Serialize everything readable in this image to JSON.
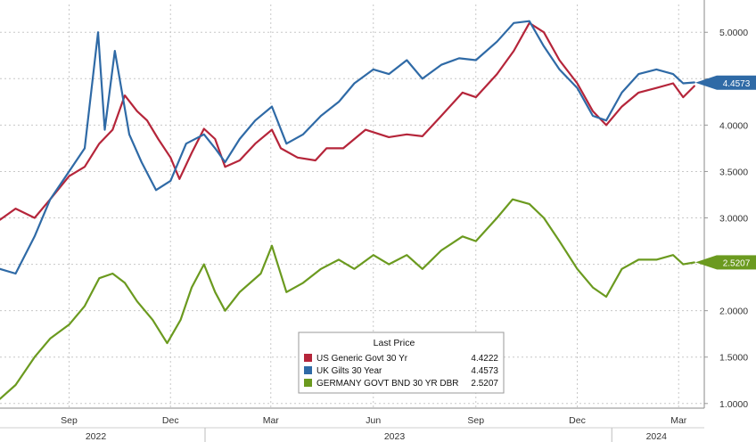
{
  "chart_data": {
    "type": "line",
    "title": "",
    "xlabel": "",
    "ylabel": "",
    "ylim": [
      0.95,
      5.3
    ],
    "yticks": [
      "1.0000",
      "1.5000",
      "2.0000",
      "2.5000",
      "3.0000",
      "3.5000",
      "4.0000",
      "4.5000",
      "5.0000"
    ],
    "xticks": [
      {
        "label": "Sep",
        "date": "2022-09-01"
      },
      {
        "label": "Dec",
        "date": "2022-12-01"
      },
      {
        "label": "Mar",
        "date": "2023-03-01"
      },
      {
        "label": "Jun",
        "date": "2023-06-01"
      },
      {
        "label": "Sep",
        "date": "2023-09-01"
      },
      {
        "label": "Dec",
        "date": "2023-12-01"
      },
      {
        "label": "Mar",
        "date": "2024-03-01"
      }
    ],
    "years": [
      {
        "label": "2022",
        "date": "2022-09-25"
      },
      {
        "label": "2023",
        "date": "2023-06-20"
      },
      {
        "label": "2024",
        "date": "2024-02-10"
      }
    ],
    "year_separators": [
      "2023-01-01",
      "2024-01-01"
    ],
    "grid": true,
    "legend": {
      "title": "Last Price",
      "placement": "bottom-center",
      "entries": [
        {
          "name": "US Generic Govt 30 Yr",
          "value": "4.4222",
          "color": "#b5253a"
        },
        {
          "name": "UK Gilts 30 Year",
          "value": "4.4573",
          "color": "#2f6aa6"
        },
        {
          "name": "GERMANY GOVT BND 30 YR DBR",
          "value": "2.5207",
          "color": "#6b9a1f"
        }
      ]
    },
    "last_tags": [
      {
        "label": "4.4573",
        "value": 4.4573,
        "color": "#2f6aa6"
      },
      {
        "label": "2.5207",
        "value": 2.5207,
        "color": "#6b9a1f"
      }
    ],
    "series": [
      {
        "name": "US Generic Govt 30 Yr",
        "color": "#b5253a",
        "points": [
          [
            "2022-07-01",
            2.98
          ],
          [
            "2022-07-15",
            3.1
          ],
          [
            "2022-08-01",
            3.0
          ],
          [
            "2022-08-15",
            3.2
          ],
          [
            "2022-09-01",
            3.45
          ],
          [
            "2022-09-15",
            3.55
          ],
          [
            "2022-09-28",
            3.8
          ],
          [
            "2022-10-10",
            3.95
          ],
          [
            "2022-10-21",
            4.32
          ],
          [
            "2022-11-01",
            4.15
          ],
          [
            "2022-11-10",
            4.05
          ],
          [
            "2022-11-20",
            3.85
          ],
          [
            "2022-12-01",
            3.65
          ],
          [
            "2022-12-09",
            3.42
          ],
          [
            "2022-12-20",
            3.7
          ],
          [
            "2022-12-31",
            3.96
          ],
          [
            "2023-01-10",
            3.85
          ],
          [
            "2023-01-19",
            3.55
          ],
          [
            "2023-02-01",
            3.62
          ],
          [
            "2023-02-15",
            3.8
          ],
          [
            "2023-03-02",
            3.95
          ],
          [
            "2023-03-10",
            3.75
          ],
          [
            "2023-03-25",
            3.65
          ],
          [
            "2023-04-10",
            3.62
          ],
          [
            "2023-04-20",
            3.75
          ],
          [
            "2023-05-05",
            3.75
          ],
          [
            "2023-05-25",
            3.95
          ],
          [
            "2023-06-15",
            3.87
          ],
          [
            "2023-07-01",
            3.9
          ],
          [
            "2023-07-15",
            3.88
          ],
          [
            "2023-08-01",
            4.1
          ],
          [
            "2023-08-20",
            4.35
          ],
          [
            "2023-09-01",
            4.3
          ],
          [
            "2023-09-20",
            4.55
          ],
          [
            "2023-10-05",
            4.8
          ],
          [
            "2023-10-19",
            5.1
          ],
          [
            "2023-11-01",
            5.0
          ],
          [
            "2023-11-15",
            4.7
          ],
          [
            "2023-12-01",
            4.45
          ],
          [
            "2023-12-15",
            4.15
          ],
          [
            "2023-12-27",
            4.0
          ],
          [
            "2024-01-10",
            4.2
          ],
          [
            "2024-01-25",
            4.35
          ],
          [
            "2024-02-10",
            4.4
          ],
          [
            "2024-02-25",
            4.45
          ],
          [
            "2024-03-05",
            4.3
          ],
          [
            "2024-03-15",
            4.42
          ]
        ]
      },
      {
        "name": "UK Gilts 30 Year",
        "color": "#2f6aa6",
        "points": [
          [
            "2022-07-01",
            2.45
          ],
          [
            "2022-07-15",
            2.4
          ],
          [
            "2022-08-01",
            2.8
          ],
          [
            "2022-08-15",
            3.2
          ],
          [
            "2022-09-01",
            3.5
          ],
          [
            "2022-09-15",
            3.75
          ],
          [
            "2022-09-27",
            5.0
          ],
          [
            "2022-10-03",
            3.95
          ],
          [
            "2022-10-12",
            4.8
          ],
          [
            "2022-10-25",
            3.9
          ],
          [
            "2022-11-05",
            3.6
          ],
          [
            "2022-11-18",
            3.3
          ],
          [
            "2022-12-01",
            3.4
          ],
          [
            "2022-12-15",
            3.8
          ],
          [
            "2022-12-31",
            3.9
          ],
          [
            "2023-01-10",
            3.75
          ],
          [
            "2023-01-19",
            3.6
          ],
          [
            "2023-02-01",
            3.85
          ],
          [
            "2023-02-15",
            4.05
          ],
          [
            "2023-03-02",
            4.2
          ],
          [
            "2023-03-15",
            3.8
          ],
          [
            "2023-03-30",
            3.9
          ],
          [
            "2023-04-15",
            4.1
          ],
          [
            "2023-05-01",
            4.25
          ],
          [
            "2023-05-15",
            4.45
          ],
          [
            "2023-06-01",
            4.6
          ],
          [
            "2023-06-15",
            4.55
          ],
          [
            "2023-07-01",
            4.7
          ],
          [
            "2023-07-15",
            4.5
          ],
          [
            "2023-08-01",
            4.65
          ],
          [
            "2023-08-17",
            4.72
          ],
          [
            "2023-09-01",
            4.7
          ],
          [
            "2023-09-20",
            4.9
          ],
          [
            "2023-10-05",
            5.1
          ],
          [
            "2023-10-19",
            5.12
          ],
          [
            "2023-11-01",
            4.85
          ],
          [
            "2023-11-15",
            4.6
          ],
          [
            "2023-12-01",
            4.4
          ],
          [
            "2023-12-15",
            4.1
          ],
          [
            "2023-12-27",
            4.05
          ],
          [
            "2024-01-10",
            4.35
          ],
          [
            "2024-01-25",
            4.55
          ],
          [
            "2024-02-10",
            4.6
          ],
          [
            "2024-02-25",
            4.55
          ],
          [
            "2024-03-05",
            4.45
          ],
          [
            "2024-03-15",
            4.46
          ]
        ]
      },
      {
        "name": "GERMANY GOVT BND 30 YR DBR",
        "color": "#6b9a1f",
        "points": [
          [
            "2022-07-01",
            1.05
          ],
          [
            "2022-07-15",
            1.2
          ],
          [
            "2022-08-01",
            1.5
          ],
          [
            "2022-08-15",
            1.7
          ],
          [
            "2022-09-01",
            1.85
          ],
          [
            "2022-09-15",
            2.05
          ],
          [
            "2022-09-28",
            2.35
          ],
          [
            "2022-10-10",
            2.4
          ],
          [
            "2022-10-21",
            2.3
          ],
          [
            "2022-11-01",
            2.1
          ],
          [
            "2022-11-15",
            1.9
          ],
          [
            "2022-11-28",
            1.65
          ],
          [
            "2022-12-10",
            1.9
          ],
          [
            "2022-12-20",
            2.25
          ],
          [
            "2022-12-31",
            2.5
          ],
          [
            "2023-01-10",
            2.2
          ],
          [
            "2023-01-19",
            2.0
          ],
          [
            "2023-02-01",
            2.2
          ],
          [
            "2023-02-20",
            2.4
          ],
          [
            "2023-03-02",
            2.7
          ],
          [
            "2023-03-15",
            2.2
          ],
          [
            "2023-03-30",
            2.3
          ],
          [
            "2023-04-15",
            2.45
          ],
          [
            "2023-05-01",
            2.55
          ],
          [
            "2023-05-15",
            2.45
          ],
          [
            "2023-06-01",
            2.6
          ],
          [
            "2023-06-15",
            2.5
          ],
          [
            "2023-07-01",
            2.6
          ],
          [
            "2023-07-15",
            2.45
          ],
          [
            "2023-08-01",
            2.65
          ],
          [
            "2023-08-20",
            2.8
          ],
          [
            "2023-09-01",
            2.75
          ],
          [
            "2023-09-20",
            3.0
          ],
          [
            "2023-10-04",
            3.2
          ],
          [
            "2023-10-19",
            3.15
          ],
          [
            "2023-11-01",
            3.0
          ],
          [
            "2023-11-15",
            2.75
          ],
          [
            "2023-12-01",
            2.45
          ],
          [
            "2023-12-15",
            2.25
          ],
          [
            "2023-12-27",
            2.15
          ],
          [
            "2024-01-10",
            2.45
          ],
          [
            "2024-01-25",
            2.55
          ],
          [
            "2024-02-10",
            2.55
          ],
          [
            "2024-02-25",
            2.6
          ],
          [
            "2024-03-05",
            2.5
          ],
          [
            "2024-03-15",
            2.52
          ]
        ]
      }
    ]
  }
}
